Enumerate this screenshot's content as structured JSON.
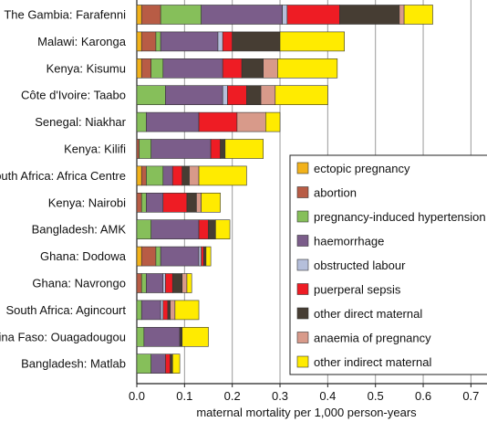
{
  "chart_data": {
    "type": "bar",
    "orientation": "horizontal",
    "stacked": true,
    "xlabel": "maternal mortality per 1,000 person-years",
    "xlim": [
      0,
      0.7
    ],
    "xticks": [
      "0.0",
      "0.1",
      "0.2",
      "0.3",
      "0.4",
      "0.5",
      "0.6",
      "0.7"
    ],
    "grid": "vertical",
    "legend_position": "right",
    "categories": [
      "The Gambia: Farafenni",
      "Malawi: Karonga",
      "Kenya: Kisumu",
      "Côte d'Ivoire: Taabo",
      "Senegal: Niakhar",
      "Kenya: Kilifi",
      "South Africa: Africa Centre",
      "Kenya: Nairobi",
      "Bangladesh: AMK",
      "Ghana: Dodowa",
      "Ghana: Navrongo",
      "South Africa: Agincourt",
      "Burkina Faso: Ouagadougou",
      "Bangladesh: Matlab"
    ],
    "series": [
      {
        "name": "ectopic pregnancy",
        "color": "#f2b21b",
        "values": [
          0.01,
          0.01,
          0.01,
          0.0,
          0.0,
          0.0,
          0.01,
          0.0,
          0.0,
          0.01,
          0.0,
          0.0,
          0.0,
          0.0
        ]
      },
      {
        "name": "abortion",
        "color": "#b85c45",
        "values": [
          0.04,
          0.03,
          0.02,
          0.0,
          0.0,
          0.005,
          0.01,
          0.01,
          0.0,
          0.03,
          0.01,
          0.0,
          0.0,
          0.0
        ]
      },
      {
        "name": "pregnancy-induced hypertension",
        "color": "#86bf5a",
        "values": [
          0.085,
          0.01,
          0.025,
          0.06,
          0.02,
          0.025,
          0.035,
          0.01,
          0.03,
          0.01,
          0.01,
          0.01,
          0.015,
          0.03
        ]
      },
      {
        "name": "haemorrhage",
        "color": "#7b5d8a",
        "values": [
          0.17,
          0.12,
          0.125,
          0.12,
          0.11,
          0.125,
          0.02,
          0.035,
          0.1,
          0.08,
          0.035,
          0.04,
          0.075,
          0.03
        ]
      },
      {
        "name": "obstructed labour",
        "color": "#b5bfdb",
        "values": [
          0.01,
          0.01,
          0.0,
          0.01,
          0.0,
          0.0,
          0.0,
          0.0,
          0.0,
          0.005,
          0.005,
          0.005,
          0.0,
          0.0
        ]
      },
      {
        "name": "puerperal sepsis",
        "color": "#ee1c24",
        "values": [
          0.11,
          0.02,
          0.04,
          0.04,
          0.08,
          0.02,
          0.02,
          0.05,
          0.02,
          0.005,
          0.015,
          0.01,
          0.0,
          0.01
        ]
      },
      {
        "name": "other direct maternal",
        "color": "#463d33",
        "values": [
          0.125,
          0.1,
          0.045,
          0.03,
          0.0,
          0.01,
          0.015,
          0.02,
          0.015,
          0.005,
          0.02,
          0.005,
          0.005,
          0.005
        ]
      },
      {
        "name": "anaemia of pregnancy",
        "color": "#d89a8a",
        "values": [
          0.01,
          0.0,
          0.03,
          0.03,
          0.06,
          0.0,
          0.02,
          0.01,
          0.0,
          0.0,
          0.01,
          0.01,
          0.0,
          0.0
        ]
      },
      {
        "name": "other indirect maternal",
        "color": "#ffeb00",
        "values": [
          0.06,
          0.135,
          0.125,
          0.11,
          0.03,
          0.08,
          0.1,
          0.04,
          0.03,
          0.01,
          0.01,
          0.05,
          0.055,
          0.015
        ]
      }
    ]
  }
}
